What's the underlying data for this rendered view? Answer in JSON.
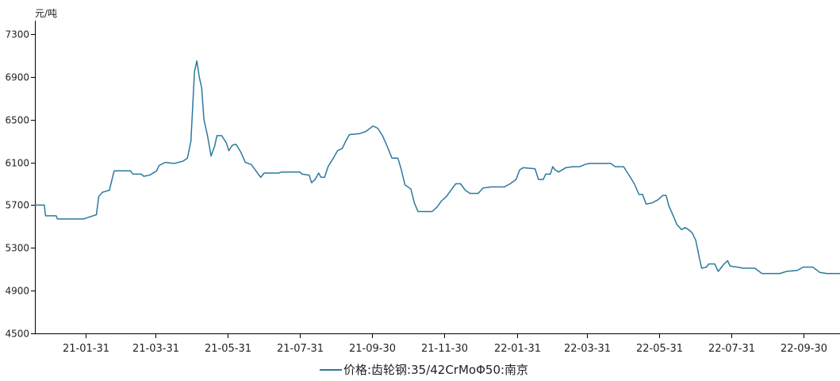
{
  "chart_data": {
    "type": "line",
    "unit_label": "元/吨",
    "ylim": [
      4500,
      7300
    ],
    "yticks": [
      4500,
      4900,
      5300,
      5700,
      6100,
      6500,
      6900,
      7300
    ],
    "y_tick_labels": [
      "4500",
      "4900",
      "5300",
      "5700",
      "6100",
      "6500",
      "6900",
      "7300"
    ],
    "xlim": [
      "2020-12-19",
      "2022-10-31"
    ],
    "x_tick_dates": [
      "2021-01-31",
      "2021-03-31",
      "2021-05-31",
      "2021-07-31",
      "2021-09-30",
      "2021-11-30",
      "2022-01-31",
      "2022-03-31",
      "2022-05-31",
      "2022-07-31",
      "2022-09-30"
    ],
    "x_tick_labels": [
      "21-01-31",
      "21-03-31",
      "21-05-31",
      "21-07-31",
      "21-09-30",
      "21-11-30",
      "22-01-31",
      "22-03-31",
      "22-05-31",
      "22-07-31",
      "22-09-30"
    ],
    "grid": false,
    "legend_position": "bottom-center",
    "series": [
      {
        "name": "价格:齿轮钢:35/42CrMoΦ50:南京",
        "color": "#2a7a9c",
        "points": [
          [
            "2020-12-19",
            5700
          ],
          [
            "2020-12-27",
            5700
          ],
          [
            "2020-12-28",
            5600
          ],
          [
            "2021-01-06",
            5600
          ],
          [
            "2021-01-07",
            5570
          ],
          [
            "2021-01-29",
            5570
          ],
          [
            "2021-02-09",
            5610
          ],
          [
            "2021-02-11",
            5780
          ],
          [
            "2021-02-14",
            5820
          ],
          [
            "2021-02-20",
            5840
          ],
          [
            "2021-02-24",
            6020
          ],
          [
            "2021-03-10",
            6020
          ],
          [
            "2021-03-12",
            5990
          ],
          [
            "2021-03-19",
            5990
          ],
          [
            "2021-03-21",
            5970
          ],
          [
            "2021-03-26",
            5980
          ],
          [
            "2021-04-01",
            6020
          ],
          [
            "2021-04-03",
            6070
          ],
          [
            "2021-04-08",
            6100
          ],
          [
            "2021-04-16",
            6090
          ],
          [
            "2021-04-23",
            6110
          ],
          [
            "2021-04-27",
            6140
          ],
          [
            "2021-04-30",
            6300
          ],
          [
            "2021-05-03",
            6950
          ],
          [
            "2021-05-05",
            7050
          ],
          [
            "2021-05-07",
            6900
          ],
          [
            "2021-05-09",
            6800
          ],
          [
            "2021-05-11",
            6500
          ],
          [
            "2021-05-14",
            6350
          ],
          [
            "2021-05-17",
            6160
          ],
          [
            "2021-05-20",
            6250
          ],
          [
            "2021-05-22",
            6350
          ],
          [
            "2021-05-26",
            6350
          ],
          [
            "2021-05-30",
            6280
          ],
          [
            "2021-06-01",
            6210
          ],
          [
            "2021-06-04",
            6260
          ],
          [
            "2021-06-07",
            6270
          ],
          [
            "2021-06-11",
            6200
          ],
          [
            "2021-06-15",
            6100
          ],
          [
            "2021-06-20",
            6080
          ],
          [
            "2021-06-24",
            6020
          ],
          [
            "2021-06-28",
            5960
          ],
          [
            "2021-07-01",
            6000
          ],
          [
            "2021-07-13",
            6000
          ],
          [
            "2021-07-16",
            6010
          ],
          [
            "2021-07-31",
            6010
          ],
          [
            "2021-08-02",
            5990
          ],
          [
            "2021-08-08",
            5980
          ],
          [
            "2021-08-10",
            5910
          ],
          [
            "2021-08-13",
            5940
          ],
          [
            "2021-08-16",
            6000
          ],
          [
            "2021-08-18",
            5960
          ],
          [
            "2021-08-21",
            5960
          ],
          [
            "2021-08-24",
            6060
          ],
          [
            "2021-08-29",
            6150
          ],
          [
            "2021-09-01",
            6210
          ],
          [
            "2021-09-05",
            6230
          ],
          [
            "2021-09-08",
            6300
          ],
          [
            "2021-09-11",
            6360
          ],
          [
            "2021-09-20",
            6370
          ],
          [
            "2021-09-25",
            6390
          ],
          [
            "2021-10-01",
            6440
          ],
          [
            "2021-10-05",
            6420
          ],
          [
            "2021-10-09",
            6350
          ],
          [
            "2021-10-13",
            6250
          ],
          [
            "2021-10-17",
            6140
          ],
          [
            "2021-10-22",
            6140
          ],
          [
            "2021-10-25",
            6030
          ],
          [
            "2021-10-28",
            5890
          ],
          [
            "2021-11-02",
            5850
          ],
          [
            "2021-11-05",
            5720
          ],
          [
            "2021-11-08",
            5640
          ],
          [
            "2021-11-20",
            5640
          ],
          [
            "2021-11-24",
            5680
          ],
          [
            "2021-11-28",
            5740
          ],
          [
            "2021-12-02",
            5780
          ],
          [
            "2021-12-06",
            5840
          ],
          [
            "2021-12-10",
            5900
          ],
          [
            "2021-12-14",
            5900
          ],
          [
            "2021-12-18",
            5840
          ],
          [
            "2021-12-22",
            5810
          ],
          [
            "2021-12-29",
            5810
          ],
          [
            "2022-01-02",
            5860
          ],
          [
            "2022-01-09",
            5870
          ],
          [
            "2022-01-20",
            5870
          ],
          [
            "2022-01-25",
            5900
          ],
          [
            "2022-01-30",
            5940
          ],
          [
            "2022-02-02",
            6030
          ],
          [
            "2022-02-05",
            6050
          ],
          [
            "2022-02-15",
            6040
          ],
          [
            "2022-02-18",
            5940
          ],
          [
            "2022-02-22",
            5940
          ],
          [
            "2022-02-24",
            5990
          ],
          [
            "2022-02-28",
            5990
          ],
          [
            "2022-03-02",
            6060
          ],
          [
            "2022-03-04",
            6030
          ],
          [
            "2022-03-07",
            6010
          ],
          [
            "2022-03-13",
            6050
          ],
          [
            "2022-03-19",
            6060
          ],
          [
            "2022-03-25",
            6060
          ],
          [
            "2022-03-29",
            6080
          ],
          [
            "2022-04-02",
            6090
          ],
          [
            "2022-04-20",
            6090
          ],
          [
            "2022-04-24",
            6060
          ],
          [
            "2022-05-01",
            6060
          ],
          [
            "2022-05-05",
            5990
          ],
          [
            "2022-05-10",
            5900
          ],
          [
            "2022-05-14",
            5800
          ],
          [
            "2022-05-17",
            5800
          ],
          [
            "2022-05-20",
            5710
          ],
          [
            "2022-05-25",
            5720
          ],
          [
            "2022-05-30",
            5750
          ],
          [
            "2022-06-03",
            5790
          ],
          [
            "2022-06-06",
            5790
          ],
          [
            "2022-06-08",
            5700
          ],
          [
            "2022-06-12",
            5600
          ],
          [
            "2022-06-15",
            5520
          ],
          [
            "2022-06-19",
            5470
          ],
          [
            "2022-06-22",
            5490
          ],
          [
            "2022-06-25",
            5470
          ],
          [
            "2022-06-28",
            5440
          ],
          [
            "2022-07-01",
            5370
          ],
          [
            "2022-07-04",
            5210
          ],
          [
            "2022-07-06",
            5110
          ],
          [
            "2022-07-10",
            5120
          ],
          [
            "2022-07-12",
            5150
          ],
          [
            "2022-07-17",
            5150
          ],
          [
            "2022-07-20",
            5080
          ],
          [
            "2022-07-25",
            5150
          ],
          [
            "2022-07-28",
            5180
          ],
          [
            "2022-07-30",
            5130
          ],
          [
            "2022-08-05",
            5120
          ],
          [
            "2022-08-10",
            5110
          ],
          [
            "2022-08-20",
            5110
          ],
          [
            "2022-08-26",
            5060
          ],
          [
            "2022-09-10",
            5060
          ],
          [
            "2022-09-16",
            5080
          ],
          [
            "2022-09-25",
            5090
          ],
          [
            "2022-09-30",
            5120
          ],
          [
            "2022-10-08",
            5120
          ],
          [
            "2022-10-14",
            5070
          ],
          [
            "2022-10-20",
            5060
          ],
          [
            "2022-10-31",
            5060
          ]
        ]
      }
    ]
  }
}
